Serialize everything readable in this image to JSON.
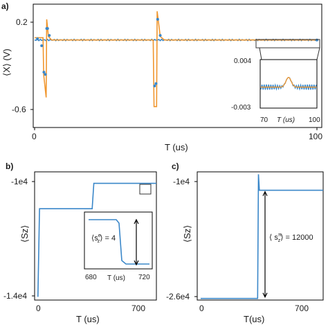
{
  "chart_data": [
    {
      "panel": "a)",
      "type": "line",
      "xlabel": "T (us)",
      "ylabel": "⟨X⟩ (V)",
      "xlim": [
        0,
        100
      ],
      "ylim": [
        -0.75,
        0.3
      ],
      "yticks": [
        "0.2",
        "-0.6"
      ],
      "xticks": [
        "0",
        "100"
      ],
      "colors": {
        "data": "#3a87c9",
        "fit": "#f0962e"
      },
      "series": [
        {
          "values_fit": [
            [
              0,
              0.02
            ],
            [
              3,
              0.02
            ],
            [
              3.2,
              -0.3
            ],
            [
              4.1,
              -0.5
            ],
            [
              4.3,
              0.18
            ],
            [
              4.9,
              0.03
            ],
            [
              6,
              0.0
            ],
            [
              42,
              0.0
            ],
            [
              42.3,
              -0.58
            ],
            [
              43.2,
              -0.58
            ],
            [
              43.4,
              0.25
            ],
            [
              44.5,
              0.03
            ],
            [
              46,
              0.0
            ],
            [
              100,
              0.0
            ]
          ]
        },
        {
          "values_data": [
            [
              1,
              0.01
            ],
            [
              2.5,
              -0.05
            ],
            [
              3.3,
              -0.28
            ],
            [
              3.8,
              -0.3
            ],
            [
              4.3,
              0.1
            ],
            [
              4.6,
              0.1
            ],
            [
              5.2,
              0.04
            ],
            [
              42.5,
              -0.4
            ],
            [
              43,
              -0.38
            ],
            [
              43.6,
              0.18
            ],
            [
              44.5,
              0.04
            ],
            [
              100,
              0.0
            ]
          ]
        }
      ],
      "inset": {
        "xlim": [
          70,
          100
        ],
        "ylim": [
          -0.003,
          0.004
        ],
        "xticks": [
          "70",
          "100"
        ],
        "yticks": [
          "0.004",
          "-0.003"
        ],
        "xlabel": "T (us)"
      }
    },
    {
      "panel": "b)",
      "type": "line",
      "xlabel": "T (us)",
      "ylabel": "⟨Sz⟩",
      "xlim": [
        -20,
        720
      ],
      "ylim": [
        -14000,
        -10000
      ],
      "yticks": [
        "-1e4",
        "-1.4e4"
      ],
      "xticks": [
        "0",
        "700"
      ],
      "color": "#3a87c9",
      "values": [
        [
          0,
          -13900
        ],
        [
          10,
          -11150
        ],
        [
          330,
          -11150
        ],
        [
          340,
          -10360
        ],
        [
          720,
          -10360
        ]
      ],
      "inset": {
        "xlim": [
          680,
          720
        ],
        "xticks": [
          "680",
          "720"
        ],
        "xlabel": "T (us)",
        "annotation_label": "⟨s",
        "annotation_sub": "z",
        "annotation_sup": "e",
        "annotation_value": "⟩ = 4"
      }
    },
    {
      "panel": "c)",
      "type": "line",
      "xlabel": "T(us)",
      "ylabel": "⟨Sz⟩",
      "xlim": [
        -20,
        720
      ],
      "ylim": [
        -26000,
        -10000
      ],
      "yticks": [
        "-1e4",
        "-2.6e4"
      ],
      "xticks": [
        "0",
        "700"
      ],
      "color": "#3a87c9",
      "values": [
        [
          0,
          -25800
        ],
        [
          335,
          -25800
        ],
        [
          340,
          -10300
        ],
        [
          345,
          -12300
        ],
        [
          720,
          -12300
        ]
      ],
      "annotation_label": "⟨ s",
      "annotation_sub": "z",
      "annotation_sup": "π",
      "annotation_value": "⟩ = 12000"
    }
  ]
}
